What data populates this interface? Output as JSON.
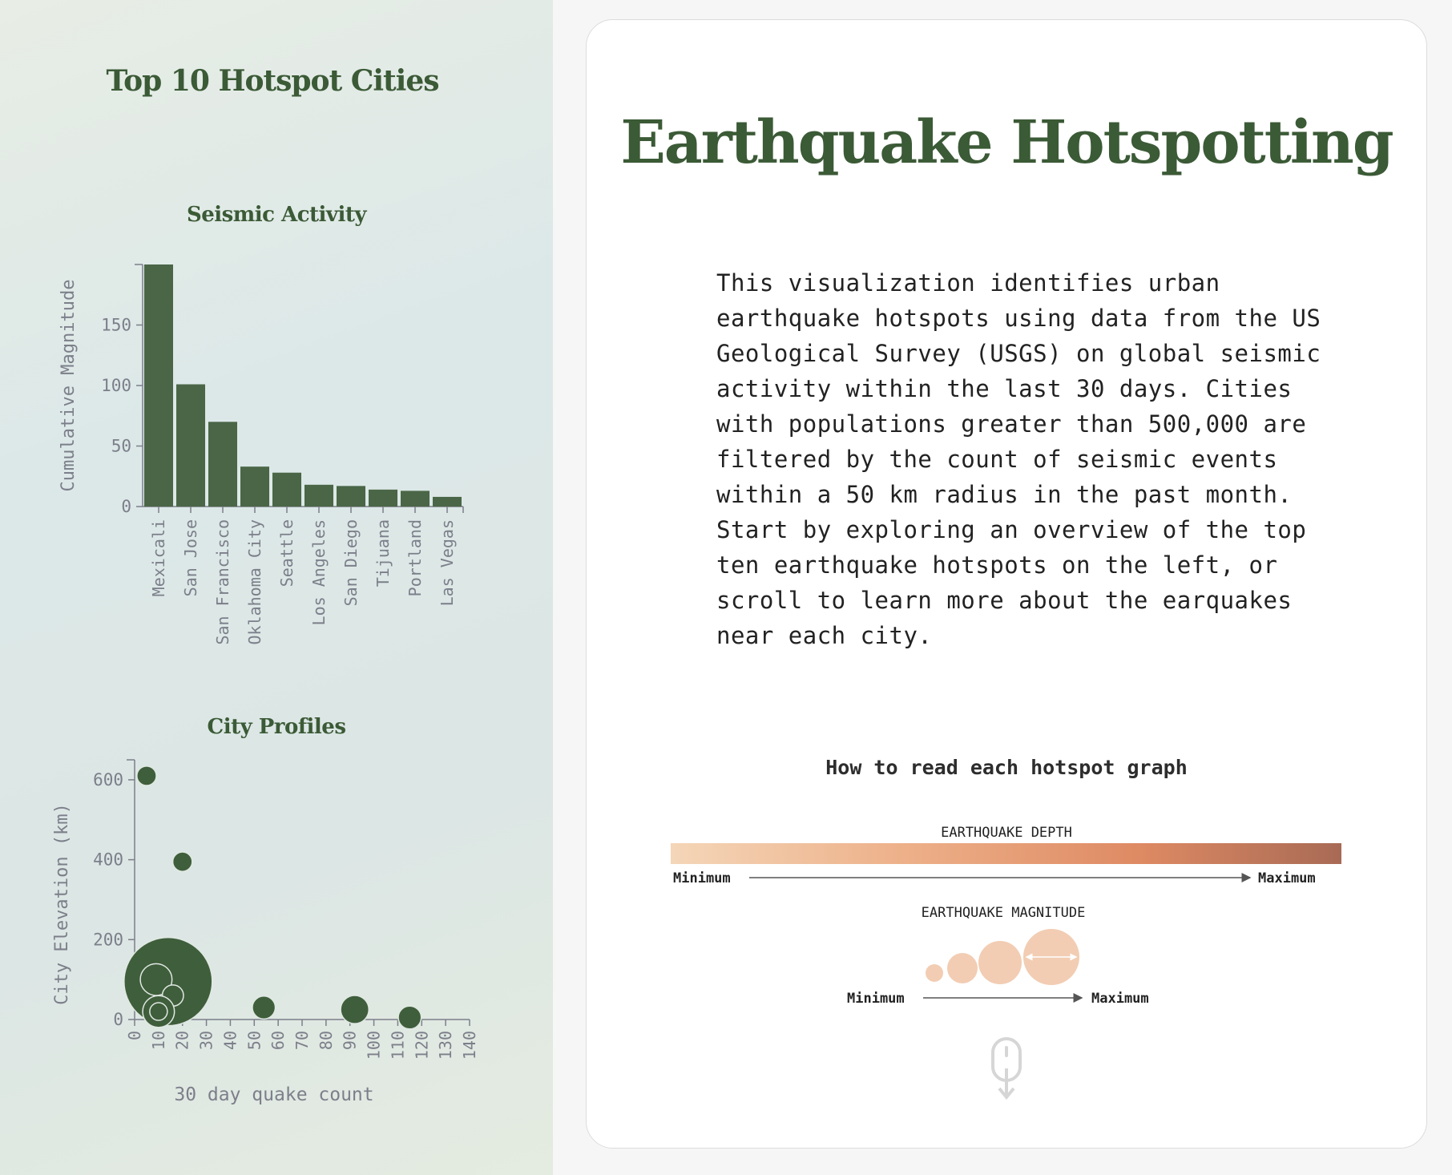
{
  "sidebar": {
    "title": "Top 10 Hotspot Cities"
  },
  "colors": {
    "bar": "#4a6647",
    "bubble": "#3f5e3b",
    "title": "#3b5a36",
    "axis": "#7c7f8a",
    "depth_gradient": [
      "#f4d6b8",
      "#e8a379",
      "#d97b56",
      "#a86a55"
    ],
    "magnitude_circle": "#f2cdb3"
  },
  "chart_data": [
    {
      "type": "bar",
      "title": "Seismic Activity",
      "ylabel": "Cumulative Magnitude",
      "xlabel": "",
      "categories": [
        "Mexicali",
        "San Jose",
        "San Francisco",
        "Oklahoma City",
        "Seattle",
        "Los Angeles",
        "San Diego",
        "Tijuana",
        "Portland",
        "Las Vegas"
      ],
      "values": [
        200,
        101,
        70,
        33,
        28,
        18,
        17,
        14,
        13,
        8
      ],
      "yticks": [
        0,
        50,
        100,
        150
      ],
      "ylim": [
        0,
        200
      ],
      "grid": false
    },
    {
      "type": "scatter",
      "title": "City Profiles",
      "xlabel": "30 day quake count",
      "ylabel": "City Elevation (km)",
      "xlim": [
        0,
        140
      ],
      "ylim": [
        0,
        650
      ],
      "xticks": [
        0,
        10,
        20,
        30,
        40,
        50,
        60,
        70,
        80,
        90,
        100,
        110,
        120,
        130,
        140
      ],
      "yticks": [
        0,
        200,
        400,
        600
      ],
      "grid": false,
      "points": [
        {
          "x": 5,
          "y": 610,
          "size": 1.1
        },
        {
          "x": 20,
          "y": 395,
          "size": 1.1
        },
        {
          "x": 14,
          "y": 95,
          "size": 5.0
        },
        {
          "x": 9,
          "y": 100,
          "size": 1.8
        },
        {
          "x": 16,
          "y": 60,
          "size": 1.2
        },
        {
          "x": 10,
          "y": 20,
          "size": 1.8
        },
        {
          "x": 10,
          "y": 20,
          "size": 1.0
        },
        {
          "x": 54,
          "y": 30,
          "size": 1.3
        },
        {
          "x": 92,
          "y": 25,
          "size": 1.6
        },
        {
          "x": 115,
          "y": 5,
          "size": 1.3
        }
      ]
    }
  ],
  "main": {
    "title": "Earthquake Hotspotting",
    "intro": "This visualization identifies urban earthquake hotspots using data from the US Geological Survey (USGS) on global seismic activity within the last 30 days. Cities with populations greater than 500,000 are filtered by the count of seismic events within a 50 km radius in the past month. Start by exploring an overview of the top ten earthquake hotspots on the left, or scroll to learn more about the earquakes near each city."
  },
  "legend": {
    "title": "How to read each hotspot graph",
    "depth_label": "EARTHQUAKE DEPTH",
    "magnitude_label": "EARTHQUAKE MAGNITUDE",
    "min_label": "Minimum",
    "max_label": "Maximum"
  },
  "scroll_hint": {
    "icon": "mouse-scroll-icon"
  }
}
